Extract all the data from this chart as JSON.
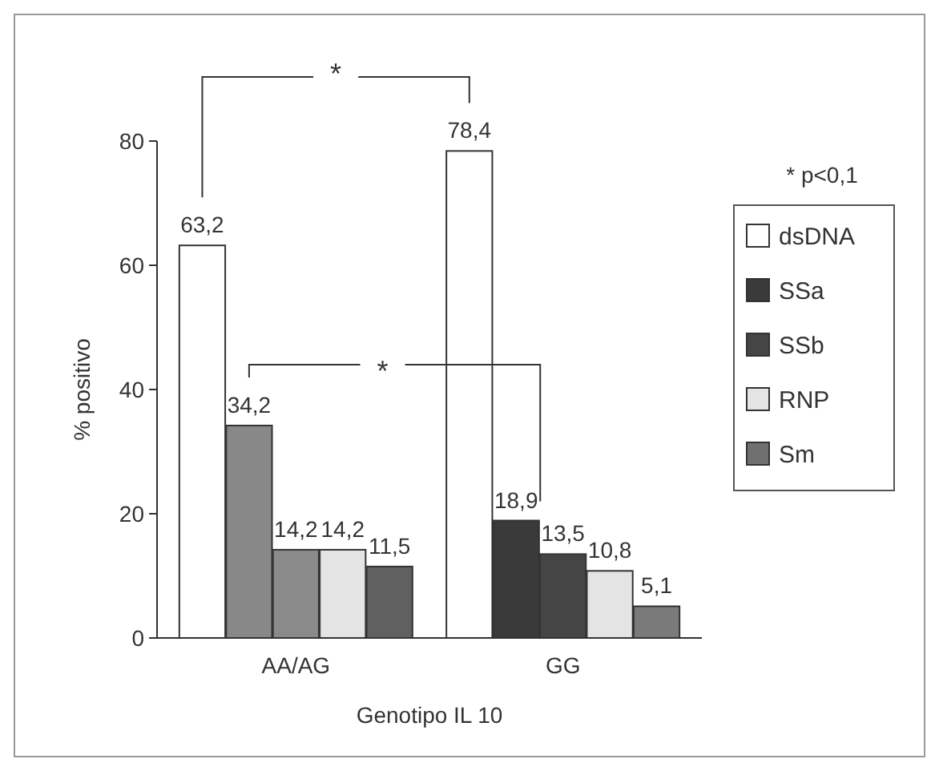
{
  "chart_data": {
    "type": "bar",
    "categories": [
      "AA/AG",
      "GG"
    ],
    "xlabel": "Genotipo IL 10",
    "ylabel": "% positivo",
    "ylim": [
      0,
      80
    ],
    "yticks": [
      0,
      20,
      40,
      60,
      80
    ],
    "grid": false,
    "legend": "right",
    "series": [
      {
        "name": "dsDNA",
        "color": "#ffffff",
        "values": [
          63.2,
          78.4
        ],
        "value_labels": [
          "63,2",
          "78,4"
        ]
      },
      {
        "name": "SSa",
        "color": "#3a3a3a",
        "colors": [
          "#888888",
          "#3a3a3a"
        ],
        "values": [
          34.2,
          18.9
        ],
        "value_labels": [
          "34,2",
          "18,9"
        ]
      },
      {
        "name": "SSb",
        "color": "#454545",
        "colors": [
          "#8a8a8a",
          "#454545"
        ],
        "values": [
          14.2,
          13.5
        ],
        "value_labels": [
          "14,2",
          "13,5"
        ]
      },
      {
        "name": "RNP",
        "color": "#e4e4e4",
        "values": [
          14.2,
          10.8
        ],
        "value_labels": [
          "14,2",
          "10,8"
        ]
      },
      {
        "name": "Sm",
        "color": "#707070",
        "colors": [
          "#606060",
          "#7a7a7a"
        ],
        "values": [
          11.5,
          5.1
        ],
        "value_labels": [
          "11,5",
          "5,1"
        ]
      }
    ],
    "annotations": [
      "*",
      "*",
      "* p<0,1"
    ]
  }
}
